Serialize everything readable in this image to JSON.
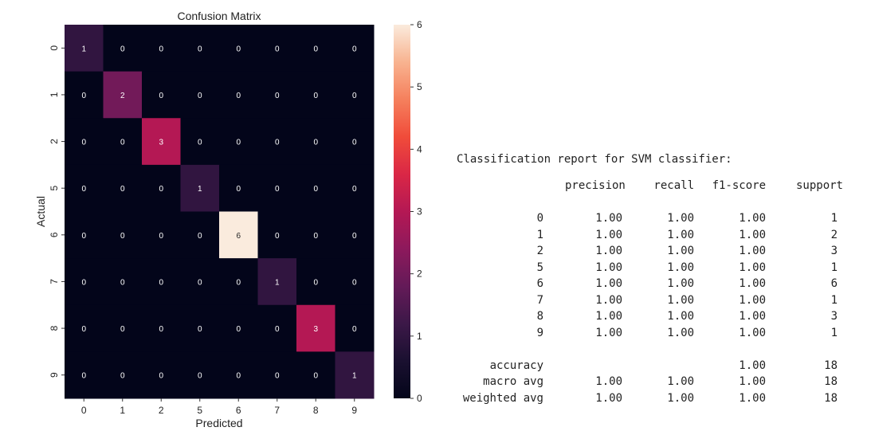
{
  "chart_data": {
    "type": "heatmap",
    "title": "Confusion Matrix",
    "xlabel": "Predicted",
    "ylabel": "Actual",
    "x_categories": [
      "0",
      "1",
      "2",
      "5",
      "6",
      "7",
      "8",
      "9"
    ],
    "y_categories": [
      "0",
      "1",
      "2",
      "5",
      "6",
      "7",
      "8",
      "9"
    ],
    "values": [
      [
        1,
        0,
        0,
        0,
        0,
        0,
        0,
        0
      ],
      [
        0,
        2,
        0,
        0,
        0,
        0,
        0,
        0
      ],
      [
        0,
        0,
        3,
        0,
        0,
        0,
        0,
        0
      ],
      [
        0,
        0,
        0,
        1,
        0,
        0,
        0,
        0
      ],
      [
        0,
        0,
        0,
        0,
        6,
        0,
        0,
        0
      ],
      [
        0,
        0,
        0,
        0,
        0,
        1,
        0,
        0
      ],
      [
        0,
        0,
        0,
        0,
        0,
        0,
        3,
        0
      ],
      [
        0,
        0,
        0,
        0,
        0,
        0,
        0,
        1
      ]
    ],
    "vmin": 0,
    "vmax": 6,
    "colorbar_ticks": [
      "0",
      "1",
      "2",
      "3",
      "4",
      "5",
      "6"
    ],
    "colormap": "rocket"
  },
  "report": {
    "title": "Classification report for SVM classifier:",
    "headers": [
      "precision",
      "recall",
      "f1-score",
      "support"
    ],
    "rows": [
      {
        "label": "0",
        "precision": "1.00",
        "recall": "1.00",
        "f1": "1.00",
        "support": "1"
      },
      {
        "label": "1",
        "precision": "1.00",
        "recall": "1.00",
        "f1": "1.00",
        "support": "2"
      },
      {
        "label": "2",
        "precision": "1.00",
        "recall": "1.00",
        "f1": "1.00",
        "support": "3"
      },
      {
        "label": "5",
        "precision": "1.00",
        "recall": "1.00",
        "f1": "1.00",
        "support": "1"
      },
      {
        "label": "6",
        "precision": "1.00",
        "recall": "1.00",
        "f1": "1.00",
        "support": "6"
      },
      {
        "label": "7",
        "precision": "1.00",
        "recall": "1.00",
        "f1": "1.00",
        "support": "1"
      },
      {
        "label": "8",
        "precision": "1.00",
        "recall": "1.00",
        "f1": "1.00",
        "support": "3"
      },
      {
        "label": "9",
        "precision": "1.00",
        "recall": "1.00",
        "f1": "1.00",
        "support": "1"
      }
    ],
    "summary": [
      {
        "label": "accuracy",
        "precision": "",
        "recall": "",
        "f1": "1.00",
        "support": "18"
      },
      {
        "label": "macro avg",
        "precision": "1.00",
        "recall": "1.00",
        "f1": "1.00",
        "support": "18"
      },
      {
        "label": "weighted avg",
        "precision": "1.00",
        "recall": "1.00",
        "f1": "1.00",
        "support": "18"
      }
    ]
  }
}
